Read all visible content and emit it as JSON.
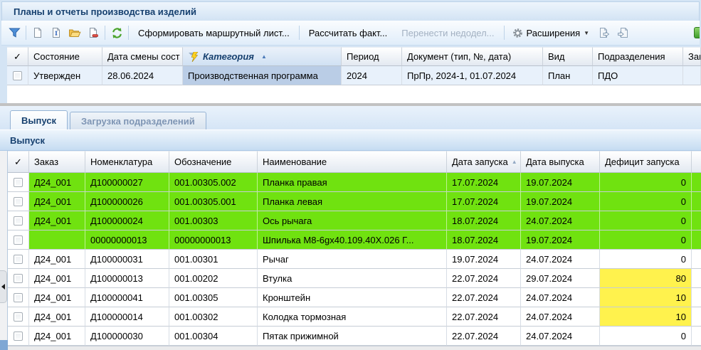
{
  "window": {
    "title": "Планы и отчеты производства изделий"
  },
  "toolbar": {
    "form_route_list": "Сформировать маршрутный лист...",
    "calc_fact": "Рассчитать факт...",
    "move_backlog": "Перенести недодел...",
    "extensions": "Расширения"
  },
  "glyphs": {
    "check": "✓",
    "sort_asc": "▲",
    "dropdown": "▼"
  },
  "plans_table": {
    "columns": [
      {
        "key": "state",
        "label": "Состояние"
      },
      {
        "key": "state-change-date",
        "label": "Дата смены сост"
      },
      {
        "key": "category",
        "label": "Категория",
        "sort": "asc",
        "filtered": true
      },
      {
        "key": "period",
        "label": "Период"
      },
      {
        "key": "document",
        "label": "Документ (тип, №, дата)"
      },
      {
        "key": "kind",
        "label": "Вид"
      },
      {
        "key": "departments",
        "label": "Подразделения"
      },
      {
        "key": "customer",
        "label": "Зак"
      }
    ],
    "rows": [
      {
        "selected": true,
        "active_key": "category",
        "cells": {
          "state": "Утвержден",
          "state-change-date": "28.06.2024",
          "category": "Производственная программа",
          "period": "2024",
          "document": "ПрПр, 2024-1, 01.07.2024",
          "kind": "План",
          "departments": "ПДО",
          "customer": ""
        }
      }
    ]
  },
  "tabs": [
    {
      "label": "Выпуск",
      "active": true
    },
    {
      "label": "Загрузка подразделений",
      "active": false
    }
  ],
  "panel_title": "Выпуск",
  "output_table": {
    "columns": [
      {
        "key": "order",
        "label": "Заказ"
      },
      {
        "key": "nomenclature",
        "label": "Номенклатура"
      },
      {
        "key": "designation",
        "label": "Обозначение"
      },
      {
        "key": "name",
        "label": "Наименование"
      },
      {
        "key": "launch-date",
        "label": "Дата запуска",
        "sort": "asc"
      },
      {
        "key": "release-date",
        "label": "Дата выпуска"
      },
      {
        "key": "deficit",
        "label": "Дефицит запуска"
      }
    ],
    "rows": [
      {
        "row_color": "green",
        "deficit_highlight": false,
        "cells": {
          "order": "Д24_001",
          "nomenclature": "Д100000027",
          "designation": "001.00305.002",
          "name": "Планка правая",
          "launch-date": "17.07.2024",
          "release-date": "19.07.2024",
          "deficit": "0"
        }
      },
      {
        "row_color": "green",
        "deficit_highlight": false,
        "cells": {
          "order": "Д24_001",
          "nomenclature": "Д100000026",
          "designation": "001.00305.001",
          "name": "Планка левая",
          "launch-date": "17.07.2024",
          "release-date": "19.07.2024",
          "deficit": "0"
        }
      },
      {
        "row_color": "green",
        "deficit_highlight": false,
        "cells": {
          "order": "Д24_001",
          "nomenclature": "Д100000024",
          "designation": "001.00303",
          "name": "Ось рычага",
          "launch-date": "18.07.2024",
          "release-date": "24.07.2024",
          "deficit": "0"
        }
      },
      {
        "row_color": "green",
        "deficit_highlight": false,
        "cells": {
          "order": "",
          "nomenclature": "00000000013",
          "designation": "00000000013",
          "name": "Шпилька М8-6gх40.109.40Х.026 Г...",
          "launch-date": "18.07.2024",
          "release-date": "19.07.2024",
          "deficit": "0"
        }
      },
      {
        "row_color": "white",
        "deficit_highlight": false,
        "cells": {
          "order": "Д24_001",
          "nomenclature": "Д100000031",
          "designation": "001.00301",
          "name": "Рычаг",
          "launch-date": "19.07.2024",
          "release-date": "24.07.2024",
          "deficit": "0"
        }
      },
      {
        "row_color": "white",
        "deficit_highlight": true,
        "cells": {
          "order": "Д24_001",
          "nomenclature": "Д100000013",
          "designation": "001.00202",
          "name": "Втулка",
          "launch-date": "22.07.2024",
          "release-date": "29.07.2024",
          "deficit": "80"
        }
      },
      {
        "row_color": "white",
        "deficit_highlight": true,
        "cells": {
          "order": "Д24_001",
          "nomenclature": "Д100000041",
          "designation": "001.00305",
          "name": "Кронштейн",
          "launch-date": "22.07.2024",
          "release-date": "24.07.2024",
          "deficit": "10"
        }
      },
      {
        "row_color": "white",
        "deficit_highlight": true,
        "cells": {
          "order": "Д24_001",
          "nomenclature": "Д100000014",
          "designation": "001.00302",
          "name": "Колодка тормозная",
          "launch-date": "22.07.2024",
          "release-date": "24.07.2024",
          "deficit": "10"
        }
      },
      {
        "row_color": "white",
        "deficit_highlight": false,
        "cells": {
          "order": "Д24_001",
          "nomenclature": "Д100000030",
          "designation": "001.00304",
          "name": "Пятак прижимной",
          "launch-date": "22.07.2024",
          "release-date": "24.07.2024",
          "deficit": "0"
        }
      }
    ]
  },
  "colors": {
    "green_row": "#70E210",
    "yellow_cell": "#FFF24D",
    "selected_row": "#E8F1FB",
    "active_cell": "#BACDE6",
    "accent": "#16406F"
  }
}
